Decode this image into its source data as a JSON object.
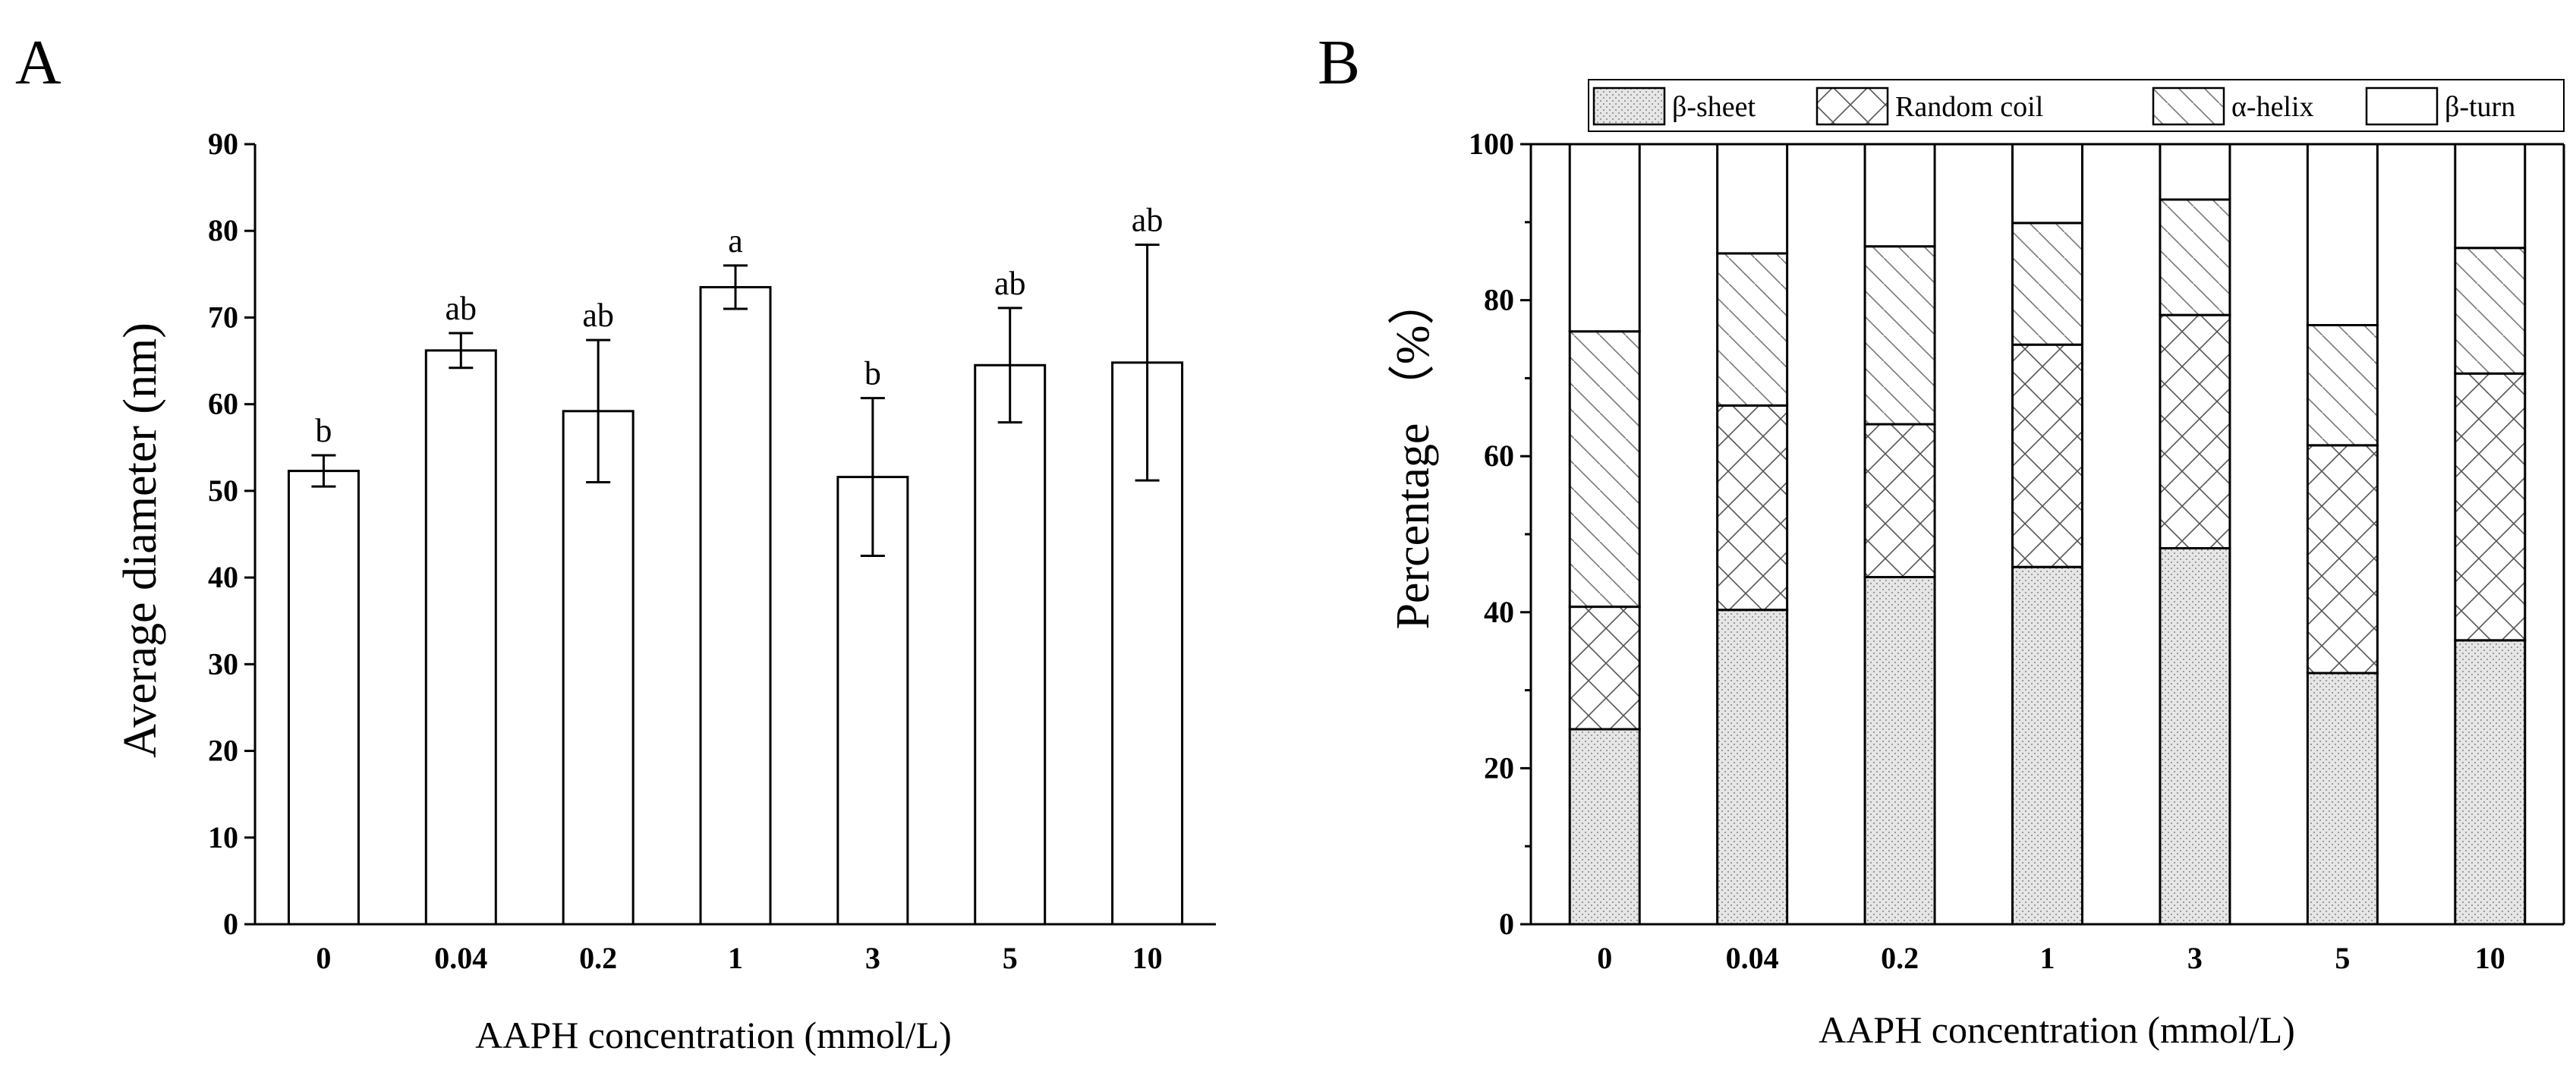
{
  "chart_data": [
    {
      "panel": "A",
      "type": "bar",
      "categories": [
        "0",
        "0.04",
        "0.2",
        "1",
        "3",
        "5",
        "10"
      ],
      "values": [
        52.3,
        66.2,
        59.2,
        73.5,
        51.6,
        64.5,
        64.8
      ],
      "errors": [
        1.8,
        2.0,
        8.2,
        2.5,
        9.1,
        6.6,
        13.6
      ],
      "significance": [
        "b",
        "ab",
        "ab",
        "a",
        "b",
        "ab",
        "ab"
      ],
      "xlabel": "AAPH concentration (mmol/L)",
      "ylabel": "Average diameter (nm)",
      "ylim": [
        0,
        90
      ],
      "yticks": [
        0,
        10,
        20,
        30,
        40,
        50,
        60,
        70,
        80,
        90
      ]
    },
    {
      "panel": "B",
      "type": "stacked-bar",
      "categories": [
        "0",
        "0.04",
        "0.2",
        "1",
        "3",
        "5",
        "10"
      ],
      "series": [
        {
          "name": "β-sheet",
          "pattern": "dots",
          "values": [
            25.0,
            40.3,
            44.5,
            45.8,
            48.2,
            32.2,
            36.4
          ]
        },
        {
          "name": "Random coil",
          "pattern": "cross",
          "values": [
            15.7,
            26.2,
            19.6,
            28.5,
            29.9,
            29.2,
            34.2
          ]
        },
        {
          "name": "α-helix",
          "pattern": "diagonal",
          "values": [
            35.3,
            19.5,
            22.8,
            15.6,
            14.8,
            15.4,
            16.1
          ]
        },
        {
          "name": "β-turn",
          "pattern": "none",
          "values": [
            24.0,
            14.0,
            13.1,
            10.1,
            7.1,
            23.2,
            13.3
          ]
        }
      ],
      "xlabel": "AAPH concentration (mmol/L)",
      "ylabel": "Percentage （%）",
      "ylim": [
        0,
        100
      ],
      "yticks": [
        0,
        20,
        40,
        60,
        80,
        100
      ],
      "legend_position": "top"
    }
  ]
}
